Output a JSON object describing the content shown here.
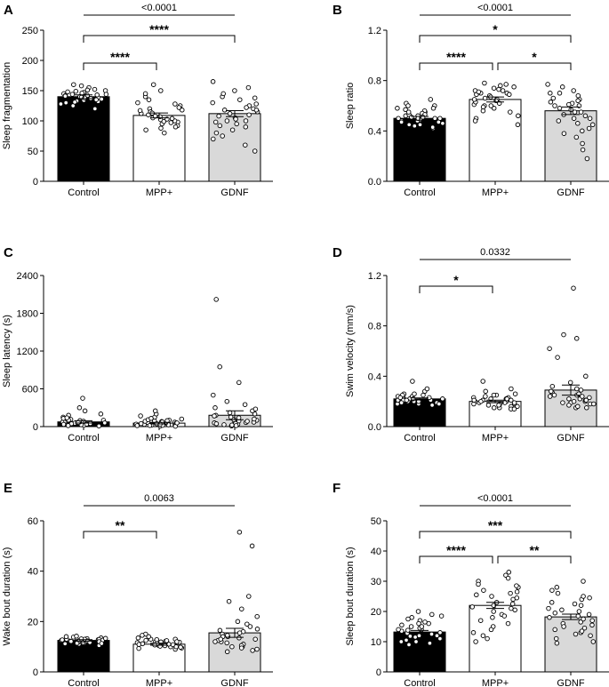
{
  "colors": {
    "control_fill": "#000000",
    "mpp_fill": "#ffffff",
    "gdnf_fill": "#d9d9d9",
    "dot_stroke": "#000000",
    "dot_fill": "#ffffff"
  },
  "chart_data": [
    {
      "panel": "A",
      "type": "bar",
      "ylabel": "Sleep fragmentation",
      "ylim": [
        0,
        250
      ],
      "yticks": [
        0,
        50,
        100,
        150,
        200,
        250
      ],
      "categories": [
        "Control",
        "MPP+",
        "GDNF"
      ],
      "means": [
        140,
        109,
        112
      ],
      "sem": [
        3,
        4,
        5
      ],
      "points": [
        [
          152,
          145,
          140,
          138,
          148,
          132,
          142,
          150,
          160,
          135,
          128,
          144,
          137,
          147,
          141,
          133,
          155,
          139,
          146,
          130,
          143,
          136,
          149,
          134,
          151,
          125,
          142,
          138,
          158,
          131,
          144,
          120
        ],
        [
          95,
          105,
          120,
          88,
          112,
          130,
          98,
          140,
          108,
          118,
          85,
          102,
          125,
          92,
          110,
          150,
          100,
          115,
          90,
          135,
          104,
          160,
          97,
          122,
          107,
          80,
          113,
          128,
          99,
          117,
          103,
          145
        ],
        [
          85,
          100,
          120,
          70,
          110,
          130,
          95,
          140,
          105,
          125,
          60,
          115,
          150,
          90,
          108,
          135,
          50,
          118,
          100,
          165,
          80,
          112,
          128,
          98,
          145,
          75,
          122,
          103,
          138,
          92,
          155,
          118
        ]
      ],
      "brackets": [
        {
          "from": 0,
          "to": 2,
          "label": "<0.0001",
          "kind": "p"
        },
        {
          "from": 0,
          "to": 2,
          "label": "****",
          "kind": "star"
        },
        {
          "from": 0,
          "to": 1,
          "label": "****",
          "kind": "star"
        }
      ]
    },
    {
      "panel": "B",
      "type": "bar",
      "ylabel": "Sleep ratio",
      "ylim": [
        0,
        1.2
      ],
      "yticks": [
        "0.0",
        "0.4",
        "0.8",
        "1.2"
      ],
      "ytick_values": [
        0,
        0.4,
        0.8,
        1.2
      ],
      "categories": [
        "Control",
        "MPP+",
        "GDNF"
      ],
      "means": [
        0.5,
        0.65,
        0.56
      ],
      "sem": [
        0.015,
        0.02,
        0.03
      ],
      "points": [
        [
          0.45,
          0.5,
          0.55,
          0.48,
          0.52,
          0.6,
          0.42,
          0.58,
          0.47,
          0.53,
          0.5,
          0.62,
          0.44,
          0.56,
          0.49,
          0.51,
          0.46,
          0.54,
          0.57,
          0.43,
          0.52,
          0.5,
          0.55,
          0.48,
          0.6,
          0.47,
          0.53,
          0.45,
          0.58,
          0.5,
          0.51,
          0.65
        ],
        [
          0.55,
          0.65,
          0.75,
          0.6,
          0.7,
          0.5,
          0.68,
          0.72,
          0.62,
          0.78,
          0.45,
          0.66,
          0.74,
          0.58,
          0.7,
          0.64,
          0.52,
          0.76,
          0.69,
          0.61,
          0.73,
          0.48,
          0.67,
          0.71,
          0.59,
          0.63,
          0.77,
          0.56,
          0.69,
          0.65,
          0.6,
          0.72
        ],
        [
          0.3,
          0.5,
          0.65,
          0.45,
          0.6,
          0.7,
          0.4,
          0.55,
          0.75,
          0.25,
          0.62,
          0.58,
          0.48,
          0.72,
          0.35,
          0.68,
          0.52,
          0.6,
          0.18,
          0.66,
          0.5,
          0.57,
          0.42,
          0.7,
          0.63,
          0.55,
          0.46,
          0.64,
          0.53,
          0.61,
          0.77,
          0.38
        ]
      ],
      "brackets": [
        {
          "from": 0,
          "to": 2,
          "label": "<0.0001",
          "kind": "p"
        },
        {
          "from": 0,
          "to": 2,
          "label": "*",
          "kind": "star"
        },
        {
          "from": 0,
          "to": 1,
          "label": "****",
          "kind": "star"
        },
        {
          "from": 1,
          "to": 2,
          "label": "*",
          "kind": "star"
        }
      ]
    },
    {
      "panel": "C",
      "type": "bar",
      "ylabel": "Sleep latency (s)",
      "ylim": [
        0,
        2400
      ],
      "yticks": [
        0,
        600,
        1200,
        1800,
        2400
      ],
      "categories": [
        "Control",
        "MPP+",
        "GDNF"
      ],
      "means": [
        75,
        55,
        180
      ],
      "sem": [
        18,
        12,
        70
      ],
      "points": [
        [
          20,
          40,
          60,
          80,
          100,
          120,
          150,
          200,
          250,
          30,
          50,
          70,
          90,
          110,
          130,
          450,
          10,
          35,
          55,
          75,
          95,
          115,
          180,
          25,
          45,
          65,
          85,
          105,
          140,
          60,
          300,
          15
        ],
        [
          10,
          20,
          30,
          40,
          50,
          60,
          70,
          80,
          90,
          100,
          120,
          150,
          200,
          250,
          15,
          25,
          35,
          45,
          55,
          65,
          75,
          85,
          95,
          110,
          130,
          170,
          5,
          18,
          28,
          38,
          48,
          58
        ],
        [
          20,
          40,
          60,
          80,
          100,
          150,
          200,
          300,
          400,
          500,
          700,
          950,
          2020,
          30,
          50,
          70,
          90,
          120,
          180,
          250,
          350,
          10,
          25,
          45,
          65,
          85,
          110,
          140,
          170,
          220,
          280,
          15
        ]
      ],
      "brackets": []
    },
    {
      "panel": "D",
      "type": "bar",
      "ylabel": "Swim velocity (mm/s)",
      "ylim": [
        0,
        1.2
      ],
      "yticks": [
        "0.0",
        "0.4",
        "0.8",
        "1.2"
      ],
      "ytick_values": [
        0,
        0.4,
        0.8,
        1.2
      ],
      "categories": [
        "Control",
        "MPP+",
        "GDNF"
      ],
      "means": [
        0.22,
        0.2,
        0.29
      ],
      "sem": [
        0.008,
        0.01,
        0.04
      ],
      "points": [
        [
          0.18,
          0.2,
          0.22,
          0.25,
          0.19,
          0.21,
          0.23,
          0.28,
          0.17,
          0.24,
          0.2,
          0.22,
          0.26,
          0.19,
          0.21,
          0.36,
          0.18,
          0.23,
          0.2,
          0.25,
          0.22,
          0.19,
          0.24,
          0.21,
          0.3,
          0.2,
          0.23,
          0.18,
          0.22,
          0.26,
          0.21,
          0.2
        ],
        [
          0.15,
          0.18,
          0.2,
          0.22,
          0.25,
          0.16,
          0.19,
          0.21,
          0.28,
          0.14,
          0.17,
          0.23,
          0.2,
          0.26,
          0.18,
          0.36,
          0.15,
          0.22,
          0.19,
          0.24,
          0.17,
          0.21,
          0.3,
          0.16,
          0.2,
          0.23,
          0.18,
          0.25,
          0.19,
          0.22,
          0.14,
          0.21
        ],
        [
          0.15,
          0.2,
          0.25,
          0.3,
          0.18,
          0.22,
          0.27,
          0.35,
          0.4,
          0.16,
          0.21,
          0.24,
          0.55,
          0.62,
          0.7,
          0.73,
          1.1,
          0.19,
          0.23,
          0.26,
          0.28,
          0.17,
          0.2,
          0.32,
          0.25,
          0.18,
          0.22,
          0.29,
          0.15,
          0.21,
          0.24,
          0.19
        ]
      ],
      "brackets": [
        {
          "from": 0,
          "to": 2,
          "label": "0.0332",
          "kind": "p"
        },
        {
          "from": 0,
          "to": 1,
          "label": "*",
          "kind": "star"
        }
      ]
    },
    {
      "panel": "E",
      "type": "bar",
      "ylabel": "Wake bout duration (s)",
      "ylim": [
        0,
        60
      ],
      "yticks": [
        0,
        20,
        40,
        60
      ],
      "categories": [
        "Control",
        "MPP+",
        "GDNF"
      ],
      "means": [
        12.5,
        11.0,
        15.5
      ],
      "sem": [
        0.3,
        0.4,
        1.8
      ],
      "points": [
        [
          11,
          12,
          13,
          12.5,
          11.5,
          13.5,
          12,
          14,
          10.5,
          12.8,
          11.8,
          13.2,
          12.2,
          11.2,
          13.8,
          12.6,
          11.6,
          12.4,
          13,
          12.1,
          11.9,
          12.7,
          13.3,
          11.4,
          12.9,
          12.3,
          14.2,
          11.7,
          12.5,
          13.1,
          12,
          11.3
        ],
        [
          9,
          10,
          11,
          12,
          13,
          10.5,
          11.5,
          12.5,
          9.5,
          14,
          10.8,
          11.2,
          12.2,
          13.5,
          10.2,
          11.8,
          9.8,
          12.8,
          11,
          15,
          10.4,
          11.6,
          12.4,
          10,
          13,
          11.3,
          9.3,
          12,
          10.7,
          11.9,
          14.5,
          10.9
        ],
        [
          8,
          10,
          12,
          14,
          16,
          18,
          20,
          25,
          28,
          30,
          50,
          55.5,
          9,
          11,
          13,
          15,
          17,
          19,
          22,
          10.5,
          12.5,
          14.5,
          16.5,
          8.5,
          11.5,
          13.5,
          15.5,
          9.5,
          12,
          14,
          10,
          13
        ]
      ],
      "brackets": [
        {
          "from": 0,
          "to": 2,
          "label": "0.0063",
          "kind": "p"
        },
        {
          "from": 0,
          "to": 1,
          "label": "**",
          "kind": "star"
        }
      ]
    },
    {
      "panel": "F",
      "type": "bar",
      "ylabel": "Sleep bout duration (s)",
      "ylim": [
        0,
        50
      ],
      "yticks": [
        0,
        10,
        20,
        30,
        40,
        50
      ],
      "categories": [
        "Control",
        "MPP+",
        "GDNF"
      ],
      "means": [
        13.2,
        22.0,
        18.2
      ],
      "sem": [
        0.5,
        1.0,
        0.9
      ],
      "points": [
        [
          10,
          11,
          12,
          13,
          14,
          15,
          16,
          17,
          18,
          19,
          20,
          9,
          10.5,
          11.5,
          12.5,
          13.5,
          14.5,
          15.5,
          16.5,
          17.5,
          12,
          13,
          14,
          11,
          15,
          10,
          16,
          12.8,
          13.8,
          11.8,
          18.5,
          9.5
        ],
        [
          12,
          15,
          18,
          20,
          22,
          24,
          26,
          28,
          30,
          32,
          33,
          10,
          14,
          17,
          19,
          21,
          23,
          25,
          27,
          29,
          31,
          13,
          16,
          20.5,
          22.5,
          24.5,
          26.5,
          18.5,
          11,
          28.5,
          21.5,
          25.5
        ],
        [
          10,
          12,
          14,
          16,
          18,
          20,
          22,
          24,
          26,
          28,
          30,
          11,
          13,
          15,
          17,
          19,
          21,
          23,
          25,
          27,
          9.5,
          14.5,
          16.5,
          18.5,
          20.5,
          12.5,
          15.5,
          17.5,
          19.5,
          22.5,
          24.5,
          13.5
        ]
      ],
      "brackets": [
        {
          "from": 0,
          "to": 2,
          "label": "<0.0001",
          "kind": "p"
        },
        {
          "from": 0,
          "to": 2,
          "label": "***",
          "kind": "star"
        },
        {
          "from": 0,
          "to": 1,
          "label": "****",
          "kind": "star"
        },
        {
          "from": 1,
          "to": 2,
          "label": "**",
          "kind": "star"
        }
      ]
    }
  ]
}
